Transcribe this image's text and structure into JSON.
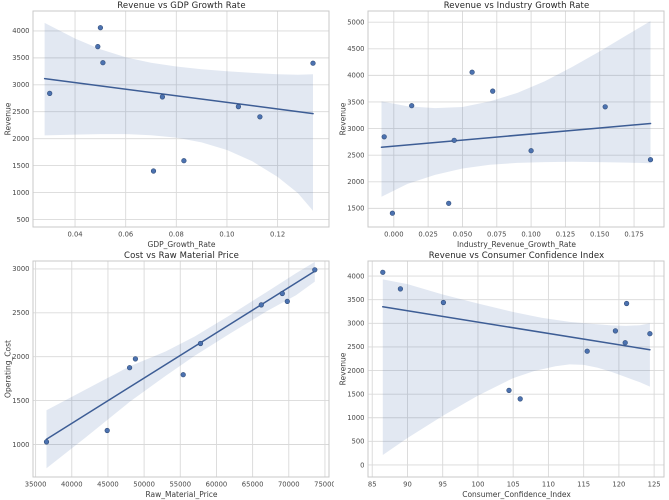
{
  "figure": {
    "background": "#ffffff",
    "layout": "2x2-scatter-regression-grid"
  },
  "colors": {
    "point_fill": "#4c72b0",
    "point_edge": "#2f4b77",
    "regression_line": "#3d5d95",
    "ci_band": "rgba(76,114,176,0.16)",
    "grid": "#d9d9d9",
    "spine": "#c9c9c9",
    "tick_text": "#4a4a4a",
    "title_text": "#262626"
  },
  "chart_data": [
    {
      "type": "scatter",
      "title": "Revenue vs GDP Growth Rate",
      "xlabel": "GDP_Growth_Rate",
      "ylabel": "Revenue",
      "grid": true,
      "legend": null,
      "xlim": [
        0.0234,
        0.1403
      ],
      "ylim": [
        360,
        4370
      ],
      "xticks": [
        0.04,
        0.06,
        0.08,
        0.1,
        0.12
      ],
      "xtick_labels": [
        "0.04",
        "0.06",
        "0.08",
        "0.10",
        "0.12"
      ],
      "yticks": [
        500,
        1000,
        1500,
        2000,
        2500,
        3000,
        3500,
        4000
      ],
      "ytick_labels": [
        "500",
        "1000",
        "1500",
        "2000",
        "2500",
        "3000",
        "3500",
        "4000"
      ],
      "points": [
        [
          0.03,
          2840
        ],
        [
          0.049,
          3710
        ],
        [
          0.05,
          4060
        ],
        [
          0.051,
          3410
        ],
        [
          0.071,
          1400
        ],
        [
          0.0745,
          2775
        ],
        [
          0.083,
          1590
        ],
        [
          0.1045,
          2595
        ],
        [
          0.113,
          2405
        ],
        [
          0.134,
          3400
        ]
      ],
      "regression": [
        [
          0.028,
          3115
        ],
        [
          0.134,
          2465
        ]
      ],
      "ci_upper": [
        [
          0.028,
          4150
        ],
        [
          0.04,
          3860
        ],
        [
          0.05,
          3660
        ],
        [
          0.06,
          3510
        ],
        [
          0.07,
          3410
        ],
        [
          0.08,
          3340
        ],
        [
          0.09,
          3290
        ],
        [
          0.1,
          3250
        ],
        [
          0.11,
          3220
        ],
        [
          0.12,
          3195
        ],
        [
          0.128,
          3185
        ],
        [
          0.134,
          3195
        ]
      ],
      "ci_lower": [
        [
          0.028,
          2060
        ],
        [
          0.04,
          2075
        ],
        [
          0.05,
          2085
        ],
        [
          0.06,
          2085
        ],
        [
          0.07,
          2065
        ],
        [
          0.08,
          2020
        ],
        [
          0.09,
          1930
        ],
        [
          0.1,
          1790
        ],
        [
          0.11,
          1580
        ],
        [
          0.12,
          1290
        ],
        [
          0.128,
          990
        ],
        [
          0.134,
          660
        ]
      ]
    },
    {
      "type": "scatter",
      "title": "Revenue vs Industry Growth Rate",
      "xlabel": "Industry_Revenue_Growth_Rate",
      "ylabel": "Revenue",
      "grid": true,
      "legend": null,
      "xlim": [
        -0.0188,
        0.1968
      ],
      "ylim": [
        1150,
        5210
      ],
      "xticks": [
        0.0,
        0.025,
        0.05,
        0.075,
        0.1,
        0.125,
        0.15,
        0.175
      ],
      "xtick_labels": [
        "0.000",
        "0.025",
        "0.050",
        "0.075",
        "0.100",
        "0.125",
        "0.150",
        "0.175"
      ],
      "yticks": [
        1500,
        2000,
        2500,
        3000,
        3500,
        4000,
        4500,
        5000
      ],
      "ytick_labels": [
        "1500",
        "2000",
        "2500",
        "3000",
        "3500",
        "4000",
        "4500",
        "5000"
      ],
      "points": [
        [
          -0.007,
          2845
        ],
        [
          -0.001,
          1410
        ],
        [
          0.013,
          3430
        ],
        [
          0.04,
          1595
        ],
        [
          0.044,
          2780
        ],
        [
          0.057,
          4060
        ],
        [
          0.072,
          3705
        ],
        [
          0.1,
          2585
        ],
        [
          0.154,
          3410
        ],
        [
          0.187,
          2415
        ]
      ],
      "regression": [
        [
          -0.009,
          2650
        ],
        [
          0.187,
          3095
        ]
      ],
      "ci_upper": [
        [
          -0.009,
          3510
        ],
        [
          0.01,
          3420
        ],
        [
          0.03,
          3385
        ],
        [
          0.05,
          3405
        ],
        [
          0.07,
          3510
        ],
        [
          0.09,
          3670
        ],
        [
          0.11,
          3890
        ],
        [
          0.13,
          4160
        ],
        [
          0.15,
          4450
        ],
        [
          0.17,
          4760
        ],
        [
          0.187,
          5020
        ]
      ],
      "ci_lower": [
        [
          -0.009,
          1720
        ],
        [
          0.01,
          1960
        ],
        [
          0.03,
          2130
        ],
        [
          0.05,
          2250
        ],
        [
          0.07,
          2320
        ],
        [
          0.09,
          2355
        ],
        [
          0.11,
          2370
        ],
        [
          0.13,
          2375
        ],
        [
          0.15,
          2370
        ],
        [
          0.17,
          2360
        ],
        [
          0.187,
          2350
        ]
      ]
    },
    {
      "type": "scatter",
      "title": "Cost vs Raw Material Price",
      "xlabel": "Raw_Material_Price",
      "ylabel": "Operating_Cost",
      "grid": true,
      "legend": null,
      "xlim": [
        34640,
        75560
      ],
      "ylim": [
        630,
        3090
      ],
      "xticks": [
        35000,
        40000,
        45000,
        50000,
        55000,
        60000,
        65000,
        70000,
        75000
      ],
      "xtick_labels": [
        "35000",
        "40000",
        "45000",
        "50000",
        "55000",
        "60000",
        "65000",
        "70000",
        "75000"
      ],
      "yticks": [
        1000,
        1500,
        2000,
        2500,
        3000
      ],
      "ytick_labels": [
        "1000",
        "1500",
        "2000",
        "2500",
        "3000"
      ],
      "points": [
        [
          36500,
          1030
        ],
        [
          44900,
          1160
        ],
        [
          48000,
          1875
        ],
        [
          48800,
          1975
        ],
        [
          55400,
          1795
        ],
        [
          57800,
          2150
        ],
        [
          66200,
          2590
        ],
        [
          69100,
          2720
        ],
        [
          69800,
          2630
        ],
        [
          73600,
          2990
        ]
      ],
      "regression": [
        [
          36500,
          1060
        ],
        [
          73600,
          2975
        ]
      ],
      "ci_upper": [
        [
          36500,
          1390
        ],
        [
          42000,
          1630
        ],
        [
          48000,
          1890
        ],
        [
          53000,
          2060
        ],
        [
          57000,
          2230
        ],
        [
          62000,
          2480
        ],
        [
          67000,
          2740
        ],
        [
          71000,
          2950
        ],
        [
          73600,
          3080
        ]
      ],
      "ci_lower": [
        [
          36500,
          730
        ],
        [
          42000,
          1085
        ],
        [
          48000,
          1485
        ],
        [
          53000,
          1784
        ],
        [
          57000,
          2011
        ],
        [
          62000,
          2270
        ],
        [
          67000,
          2520
        ],
        [
          71000,
          2700
        ],
        [
          73600,
          2855
        ]
      ]
    },
    {
      "type": "scatter",
      "title": "Revenue vs Consumer Confidence Index",
      "xlabel": "Consumer_Confidence_Index",
      "ylabel": "Revenue",
      "grid": true,
      "legend": null,
      "xlim": [
        84.4,
        126.4
      ],
      "ylim": [
        -255,
        4320
      ],
      "xticks": [
        85,
        90,
        95,
        100,
        105,
        110,
        115,
        120,
        125
      ],
      "xtick_labels": [
        "85",
        "90",
        "95",
        "100",
        "105",
        "110",
        "115",
        "120",
        "125"
      ],
      "yticks": [
        0,
        500,
        1000,
        1500,
        2000,
        2500,
        3000,
        3500,
        4000
      ],
      "ytick_labels": [
        "0",
        "500",
        "1000",
        "1500",
        "2000",
        "2500",
        "3000",
        "3500",
        "4000"
      ],
      "points": [
        [
          86.5,
          4080
        ],
        [
          89.0,
          3730
        ],
        [
          95.1,
          3440
        ],
        [
          104.4,
          1580
        ],
        [
          106.0,
          1400
        ],
        [
          115.5,
          2410
        ],
        [
          119.5,
          2840
        ],
        [
          120.9,
          2590
        ],
        [
          121.1,
          3420
        ],
        [
          124.4,
          2780
        ]
      ],
      "regression": [
        [
          86.5,
          3350
        ],
        [
          124.4,
          2440
        ]
      ],
      "ci_upper": [
        [
          86.5,
          3930
        ],
        [
          90,
          3830
        ],
        [
          95,
          3610
        ],
        [
          100,
          3420
        ],
        [
          105,
          3240
        ],
        [
          109,
          3120
        ],
        [
          113,
          3030
        ],
        [
          116,
          2990
        ],
        [
          119,
          2955
        ],
        [
          121,
          2945
        ],
        [
          123,
          2960
        ],
        [
          124.4,
          3000
        ]
      ],
      "ci_lower": [
        [
          86.5,
          210
        ],
        [
          90,
          570
        ],
        [
          95,
          1040
        ],
        [
          100,
          1470
        ],
        [
          105,
          1840
        ],
        [
          108,
          1990
        ],
        [
          111,
          2090
        ],
        [
          113,
          2130
        ],
        [
          115,
          2120
        ],
        [
          117,
          2060
        ],
        [
          119,
          1970
        ],
        [
          121,
          1860
        ],
        [
          123,
          1750
        ],
        [
          124.4,
          1660
        ]
      ]
    }
  ]
}
